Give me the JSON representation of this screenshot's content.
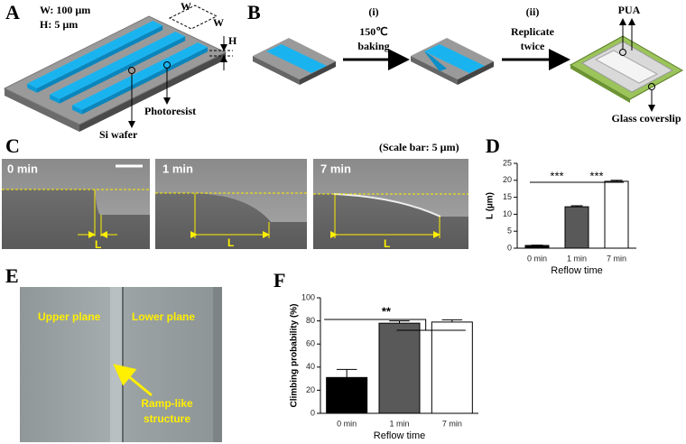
{
  "panels": [
    "A",
    "B",
    "C",
    "D",
    "E",
    "F"
  ],
  "panel_a": {
    "width_text": "W: 100 µm",
    "height_text": "H: 5 µm",
    "w_top": "W",
    "w_side": "W",
    "h": "H",
    "photoresist": "Photoresist",
    "si_wafer": "Si wafer"
  },
  "panel_b": {
    "step1_number": "(i)",
    "step1_text": [
      "150℃",
      "baking"
    ],
    "step2_number": "(ii)",
    "step2_text": [
      "Replicate",
      "twice"
    ],
    "pua": "PUA",
    "glass": "Glass coverslip"
  },
  "panel_c": {
    "scale_note": "(Scale bar: 5 µm)",
    "times": [
      "0 min",
      "1 min",
      "7 min"
    ],
    "length": "L"
  },
  "panel_e": {
    "upper": "Upper plane",
    "lower": "Lower plane",
    "ramp": [
      "Ramp-like",
      "structure"
    ]
  },
  "chart_data": [
    {
      "type": "bar",
      "categories": [
        "0 min",
        "1 min",
        "7 min"
      ],
      "values": [
        0.8,
        12.2,
        19.7
      ],
      "errors": [
        0.1,
        0.3,
        0.3
      ],
      "colors": [
        "#000000",
        "#595959",
        "#ffffff"
      ],
      "xlabel": "Reflow time",
      "ylabel": "L (µm)",
      "ylim": [
        0,
        25
      ],
      "yticks": [
        0,
        5,
        10,
        15,
        20,
        25
      ],
      "annotations": [
        "***",
        "***"
      ]
    },
    {
      "type": "bar",
      "categories": [
        "0 min",
        "1 min",
        "7 min"
      ],
      "values": [
        31,
        78,
        79
      ],
      "errors": [
        7,
        2,
        2
      ],
      "colors": [
        "#000000",
        "#595959",
        "#ffffff"
      ],
      "xlabel": "Reflow time",
      "ylabel": "Climbing probability (%)",
      "ylim": [
        0,
        100
      ],
      "yticks": [
        0,
        20,
        40,
        60,
        80,
        100
      ],
      "annotations": [
        "**"
      ]
    }
  ]
}
